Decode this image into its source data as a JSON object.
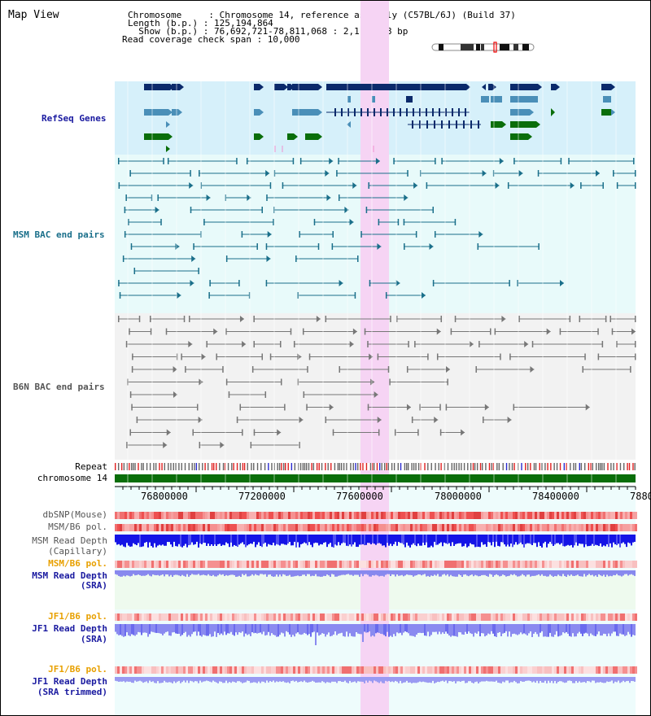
{
  "title": "Map View",
  "header": {
    "chromosome_label": "Chromosome     : Chromosome 14, reference assembly (C57BL/6J) (Build 37)",
    "length_label": "Length (b.p.) : 125,194,864",
    "show_label": "  Show (b.p.) : 76,692,721-78,811,068 : 2,118,348 bp",
    "coverage_label": "Read coverage check span : 10,000"
  },
  "tracks": {
    "refseq": "RefSeq Genes",
    "msm_bac": "MSM BAC end pairs",
    "b6n_bac": "B6N BAC end pairs",
    "repeat": "Repeat",
    "chromosome": "chromosome 14"
  },
  "axis": {
    "ticks": [
      "76800000",
      "77200000",
      "77600000",
      "78000000",
      "78400000",
      "7880"
    ]
  },
  "lower_tracks": {
    "dbsnp": "dbSNP(Mouse)",
    "msm_b6_pol_1": "MSM/B6 pol.",
    "msm_read_depth_cap_1": "MSM Read Depth",
    "msm_read_depth_cap_2": "(Capillary)",
    "msm_b6_pol_2": "MSM/B6 pol.",
    "msm_read_depth_sra_1": "MSM Read Depth",
    "msm_read_depth_sra_2": "(SRA)",
    "jf1_b6_pol_1": "JF1/B6 pol.",
    "jf1_read_depth_sra_1": "JF1 Read Depth",
    "jf1_read_depth_sra_2": "(SRA)",
    "jf1_b6_pol_2": "JF1/B6 pol.",
    "jf1_read_depth_trim_1": "JF1 Read Depth",
    "jf1_read_depth_trim_2": "(SRA trimmed)"
  },
  "colors": {
    "refseq_bg": "#d6f0fa",
    "msm_bg": "#e8fafa",
    "b6n_bg": "#f2f2f2",
    "highlight": "#f6d4f4",
    "dark_blue": "#0b2a6b",
    "mid_blue": "#4a8fb8",
    "green": "#0a6e0a",
    "teal": "#1a6f8a",
    "gray": "#777777",
    "red": "#e02020",
    "depth_blue": "#1414e6",
    "depth_light": "#8a8af0",
    "label_navy": "#1a1aa0",
    "label_teal": "#1a6f8a",
    "label_gray": "#555555",
    "label_orange": "#e8a000"
  }
}
